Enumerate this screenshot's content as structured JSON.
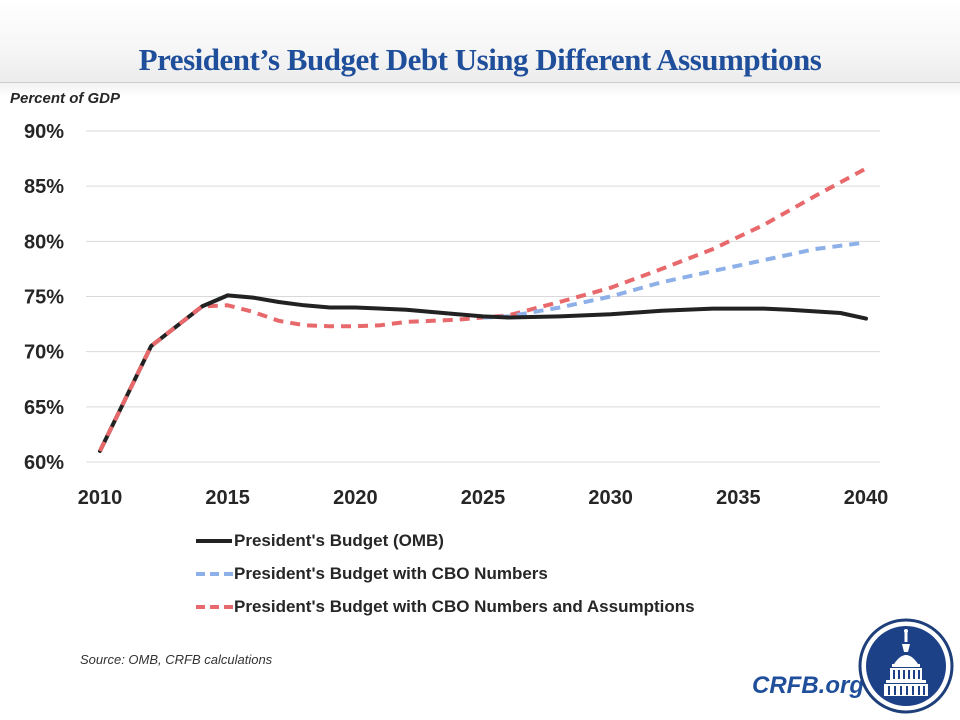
{
  "header": {
    "title": "President’s Budget Debt Using Different Assumptions"
  },
  "footer": {
    "source": "Source: OMB, CRFB calculations",
    "brand": "CRFB.org",
    "logo_icon": "capitol-dome-logo-icon"
  },
  "colors": {
    "title": "#1f4e9b",
    "omb": "#222222",
    "cbo_numbers": "#8eb0e8",
    "cbo_assumptions": "#e8696b",
    "grid": "#d9d9d9",
    "text": "#262626"
  },
  "chart_data": {
    "type": "line",
    "title": "President’s Budget Debt Using Different Assumptions",
    "xlabel": "",
    "ylabel": "Percent of GDP",
    "xlim": [
      2010,
      2040
    ],
    "ylim": [
      60,
      90
    ],
    "x_ticks": [
      2010,
      2015,
      2020,
      2025,
      2030,
      2035,
      2040
    ],
    "x_tick_labels": [
      "2010",
      "2015",
      "2020",
      "2025",
      "2030",
      "2035",
      "2040"
    ],
    "y_ticks": [
      60,
      65,
      70,
      75,
      80,
      85,
      90
    ],
    "y_tick_labels": [
      "60%",
      "65%",
      "70%",
      "75%",
      "80%",
      "85%",
      "90%"
    ],
    "grid": "horizontal",
    "legend_position": "bottom",
    "series": [
      {
        "name": "President's Budget (OMB)",
        "style": "solid",
        "color": "#222222",
        "x": [
          2010,
          2012,
          2014,
          2015,
          2016,
          2017,
          2018,
          2019,
          2020,
          2022,
          2024,
          2025,
          2026,
          2028,
          2030,
          2032,
          2034,
          2036,
          2037,
          2039,
          2040
        ],
        "y": [
          61.0,
          70.5,
          74.1,
          75.1,
          74.9,
          74.5,
          74.2,
          74.0,
          74.0,
          73.8,
          73.4,
          73.2,
          73.1,
          73.2,
          73.4,
          73.7,
          73.9,
          73.9,
          73.8,
          73.5,
          73.0
        ]
      },
      {
        "name": "President's Budget with CBO Numbers",
        "style": "dashed",
        "color": "#8eb0e8",
        "x": [
          2025,
          2026,
          2028,
          2030,
          2032,
          2034,
          2036,
          2038,
          2040
        ],
        "y": [
          73.1,
          73.2,
          74.0,
          75.0,
          76.3,
          77.3,
          78.3,
          79.3,
          79.9
        ]
      },
      {
        "name": "President's Budget with CBO Numbers and Assumptions",
        "style": "dashed",
        "color": "#e8696b",
        "x": [
          2010,
          2012,
          2014,
          2015,
          2016,
          2017,
          2018,
          2019,
          2020,
          2021,
          2022,
          2024,
          2025,
          2026,
          2028,
          2030,
          2032,
          2034,
          2036,
          2038,
          2040
        ],
        "y": [
          61.0,
          70.5,
          74.1,
          74.2,
          73.6,
          72.8,
          72.4,
          72.3,
          72.3,
          72.4,
          72.7,
          72.9,
          73.1,
          73.3,
          74.5,
          75.8,
          77.5,
          79.3,
          81.5,
          84.1,
          86.6
        ]
      }
    ]
  }
}
